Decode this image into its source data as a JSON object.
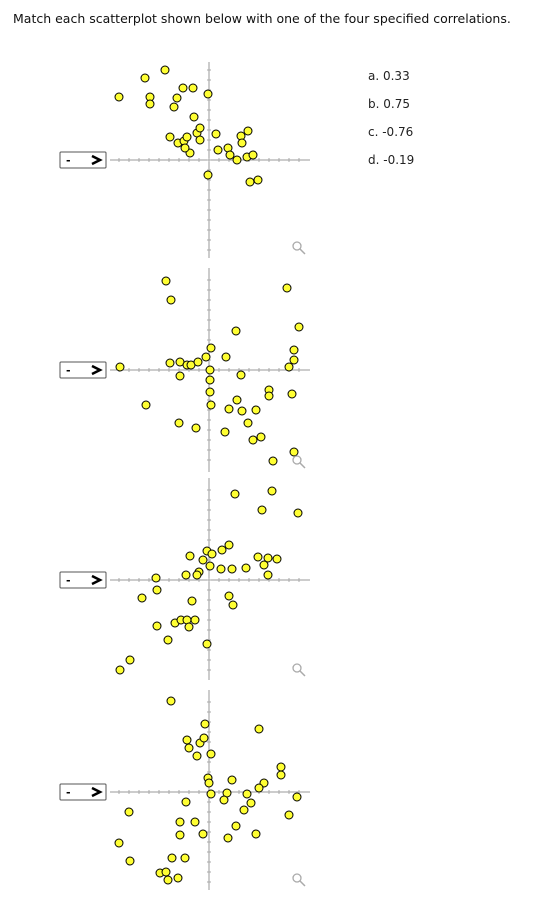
{
  "question": "Match each scatterplot shown below with one of the four specified correlations.",
  "options": [
    "a. 0.33",
    "b. 0.75",
    "c. -0.76",
    "d. -0.19"
  ],
  "plots": [
    {
      "selected": "-"
    },
    {
      "selected": "-"
    },
    {
      "selected": "-"
    },
    {
      "selected": "-"
    }
  ]
}
